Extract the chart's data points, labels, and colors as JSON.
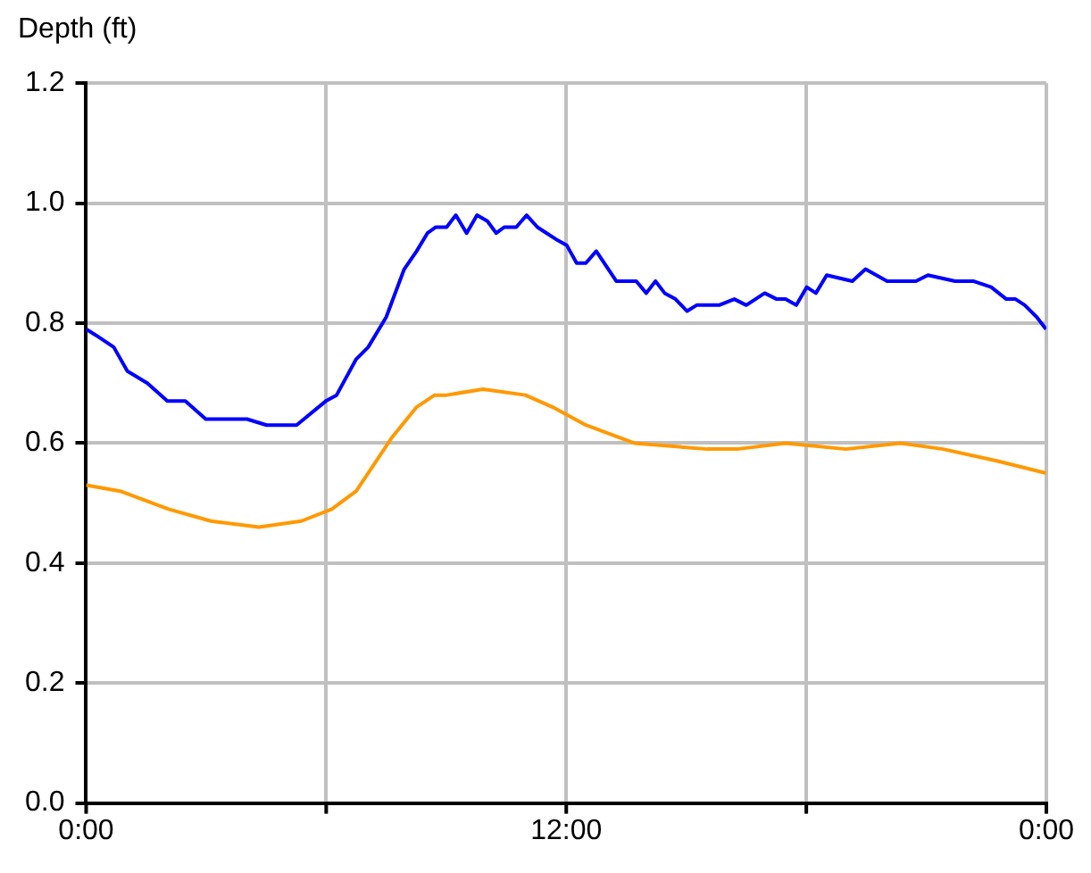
{
  "chart_data": {
    "type": "line",
    "ylabel": "Depth (ft)",
    "xlim": [
      0,
      24
    ],
    "xticks": [
      {
        "value": 0,
        "label": "0:00"
      },
      {
        "value": 6,
        "label": null
      },
      {
        "value": 12,
        "label": "12:00"
      },
      {
        "value": 18,
        "label": null
      },
      {
        "value": 24,
        "label": "0:00"
      }
    ],
    "ylim": [
      0,
      1.2
    ],
    "yticks": [
      {
        "value": 0,
        "label": "0.0"
      },
      {
        "value": 0.2,
        "label": "0.2"
      },
      {
        "value": 0.4,
        "label": "0.4"
      },
      {
        "value": 0.6,
        "label": "0.6"
      },
      {
        "value": 0.8,
        "label": "0.8"
      },
      {
        "value": 1,
        "label": "1.0"
      },
      {
        "value": 1.2,
        "label": "1.2"
      }
    ],
    "grid": true,
    "legend": false,
    "marker": "none",
    "line_style": "solid",
    "series": [
      {
        "color": "#0000ff",
        "x": [
          0,
          0.24,
          0.69,
          1.03,
          1.53,
          2.03,
          2.48,
          2.99,
          3.54,
          4.02,
          4.51,
          4.93,
          5.26,
          5.99,
          6.26,
          6.75,
          7.05,
          7.5,
          7.95,
          8.26,
          8.53,
          8.74,
          9.01,
          9.24,
          9.51,
          9.77,
          10.03,
          10.25,
          10.45,
          10.75,
          11.01,
          11.28,
          11.51,
          11.74,
          12.01,
          12.26,
          12.49,
          12.75,
          13.25,
          13.75,
          14,
          14.23,
          14.46,
          14.73,
          15.02,
          15.26,
          15.52,
          15.82,
          16.2,
          16.5,
          16.96,
          17.26,
          17.48,
          17.75,
          18.01,
          18.24,
          18.51,
          19.15,
          19.48,
          20.02,
          20.74,
          21.04,
          21.72,
          22.17,
          22.62,
          23,
          23.23,
          23.46,
          23.76,
          23.99
        ],
        "values": [
          0.79,
          0.78,
          0.76,
          0.72,
          0.7,
          0.67,
          0.67,
          0.64,
          0.64,
          0.64,
          0.63,
          0.63,
          0.63,
          0.67,
          0.68,
          0.74,
          0.76,
          0.81,
          0.89,
          0.92,
          0.95,
          0.96,
          0.96,
          0.98,
          0.95,
          0.98,
          0.97,
          0.95,
          0.96,
          0.96,
          0.98,
          0.96,
          0.95,
          0.94,
          0.93,
          0.9,
          0.9,
          0.92,
          0.87,
          0.87,
          0.85,
          0.87,
          0.85,
          0.84,
          0.82,
          0.83,
          0.83,
          0.83,
          0.84,
          0.83,
          0.85,
          0.84,
          0.84,
          0.83,
          0.86,
          0.85,
          0.88,
          0.87,
          0.89,
          0.87,
          0.87,
          0.88,
          0.87,
          0.87,
          0.86,
          0.84,
          0.84,
          0.83,
          0.81,
          0.79
        ]
      },
      {
        "color": "#ff9900",
        "x": [
          0,
          0.85,
          2.06,
          3.12,
          4.32,
          5.38,
          6.14,
          6.75,
          7.65,
          8.26,
          8.71,
          9.01,
          9.92,
          10.98,
          11.66,
          12.49,
          13.7,
          15.52,
          16.27,
          17.48,
          18.99,
          20.35,
          21.42,
          22.78,
          23.99
        ],
        "values": [
          0.53,
          0.52,
          0.49,
          0.47,
          0.46,
          0.47,
          0.49,
          0.52,
          0.61,
          0.66,
          0.68,
          0.68,
          0.69,
          0.68,
          0.66,
          0.63,
          0.6,
          0.59,
          0.59,
          0.6,
          0.59,
          0.6,
          0.59,
          0.57,
          0.55
        ]
      }
    ]
  }
}
